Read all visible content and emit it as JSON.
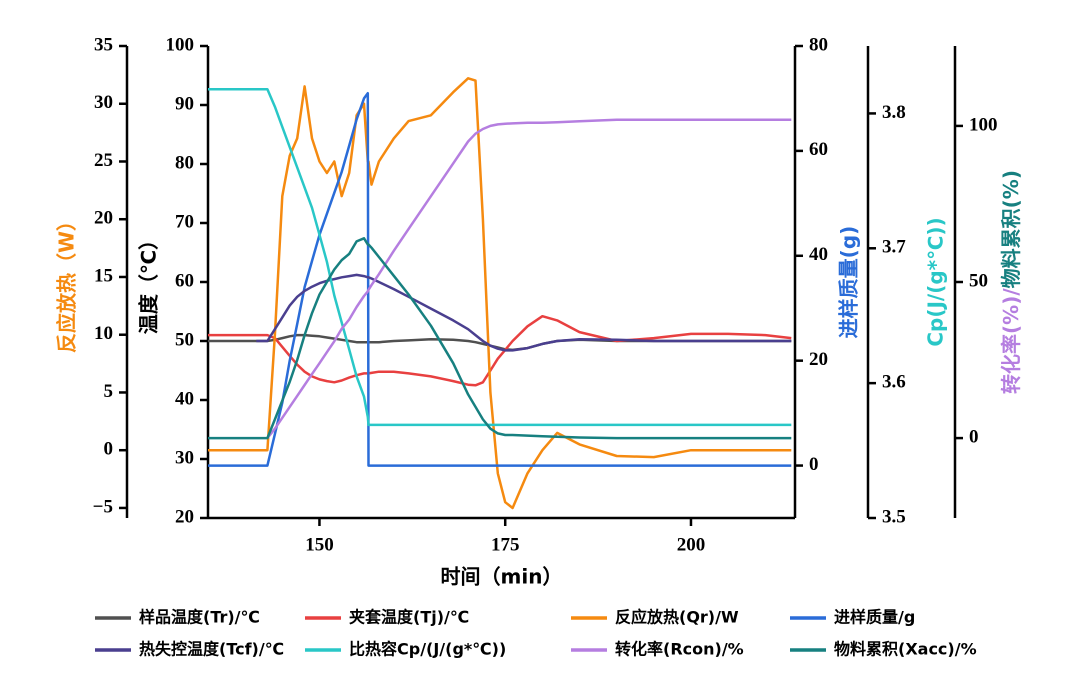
{
  "chart_data": {
    "type": "line",
    "x_label": "时间（min）",
    "xlim": [
      135,
      214
    ],
    "xticks": [
      150,
      175,
      200
    ],
    "ylim": [
      20,
      100
    ],
    "yticks": [
      20,
      30,
      40,
      50,
      60,
      70,
      80,
      90,
      100
    ],
    "y_label": "温度（℃）",
    "y2lim": [
      -5.87,
      35
    ],
    "y2ticks": [
      {
        "value": -5,
        "label": "−5"
      },
      0,
      5,
      10,
      15,
      20,
      25,
      30,
      35
    ],
    "y2_label": "反应放热（W）",
    "y3lim": [
      -10,
      80
    ],
    "y3ticks": [
      0,
      20,
      40,
      60,
      80
    ],
    "y3_label": "进样质量(g)",
    "y4lim": [
      3.5,
      3.85
    ],
    "y4ticks": [
      3.5,
      3.6,
      3.7,
      3.8
    ],
    "y4_label": "Cp(J/(g*℃))",
    "y5lim": [
      -25.6,
      125.6
    ],
    "y5ticks": [
      0,
      50,
      100
    ],
    "y5_label": [
      "转化率(%)/",
      "物料累积(%)"
    ],
    "x": [
      135,
      140,
      141.5,
      143,
      144,
      145,
      146,
      147,
      148,
      149,
      150,
      151,
      152,
      153,
      154,
      155,
      156,
      156.5,
      156.6,
      157,
      158,
      160,
      162,
      165,
      168,
      170,
      171,
      172,
      173,
      174,
      175,
      176,
      178,
      180,
      182,
      185,
      190,
      195,
      200,
      205,
      210,
      213.5
    ],
    "series": [
      {
        "name": "样品温度(Tr)/℃",
        "color": "#505050",
        "axis": "y",
        "values": [
          50,
          50,
          50,
          50,
          50.2,
          50.5,
          50.8,
          51,
          51,
          50.9,
          50.8,
          50.6,
          50.4,
          50.2,
          50,
          49.8,
          49.8,
          49.8,
          49.8,
          49.8,
          49.8,
          50,
          50.1,
          50.3,
          50.2,
          50,
          49.8,
          49.5,
          49.2,
          48.9,
          48.6,
          48.5,
          48.8,
          49.5,
          50,
          50.2,
          50,
          50,
          50,
          50,
          50,
          50
        ]
      },
      {
        "name": "夹套温度(Tj)/℃",
        "color": "#e84040",
        "axis": "y",
        "values": [
          51,
          51,
          51,
          51,
          50.5,
          49,
          47.5,
          46,
          44.8,
          44,
          43.5,
          43.2,
          43,
          43.3,
          43.8,
          44.2,
          44.5,
          44.5,
          44.5,
          44.6,
          44.8,
          44.8,
          44.5,
          44,
          43.2,
          42.6,
          42.5,
          43,
          45,
          47,
          48.5,
          50,
          52.5,
          54.2,
          53.5,
          51.5,
          50,
          50.5,
          51.2,
          51.2,
          51,
          50.5
        ]
      },
      {
        "name": "反应放热(Qr)/W",
        "color": "#f58a10",
        "axis": "y2",
        "values": [
          0,
          0,
          0,
          0,
          10,
          22,
          25.5,
          27,
          31.5,
          27,
          25,
          24,
          25,
          22,
          24,
          29,
          30,
          25,
          25,
          23,
          25,
          27,
          28.5,
          29,
          31,
          32.2,
          32,
          20,
          5,
          -2,
          -4.5,
          -5,
          -2,
          0,
          1.5,
          0.5,
          -0.5,
          -0.6,
          0,
          0,
          0,
          0
        ]
      },
      {
        "name": "进样质量/g",
        "color": "#2a6cd8",
        "axis": "y3",
        "values": [
          0,
          0,
          0,
          0,
          6,
          12,
          20,
          27,
          34,
          39,
          44,
          48,
          52,
          56,
          61,
          66,
          70,
          71,
          0,
          0,
          0,
          0,
          0,
          0,
          0,
          0,
          0,
          0,
          0,
          0,
          0,
          0,
          0,
          0,
          0,
          0,
          0,
          0,
          0,
          0,
          0,
          0
        ]
      },
      {
        "name": "热失控温度(Tcf)/℃",
        "color": "#4a3f8f",
        "axis": "y",
        "values": [
          null,
          null,
          50,
          50,
          52,
          54,
          56,
          57.5,
          58.5,
          59.2,
          59.8,
          60.2,
          60.5,
          60.8,
          61,
          61.2,
          61,
          60.8,
          60.8,
          60.6,
          60,
          58.8,
          57.5,
          55.5,
          53.5,
          52,
          51,
          50,
          49.2,
          48.7,
          48.4,
          48.4,
          48.8,
          49.5,
          50,
          50.3,
          50.2,
          50,
          50,
          50,
          50,
          50
        ]
      },
      {
        "name": "比热容Cp/(J/(g*℃))",
        "color": "#29c7c7",
        "axis": "y4",
        "values": [
          3.818,
          3.818,
          3.818,
          3.818,
          3.805,
          3.79,
          3.775,
          3.76,
          3.745,
          3.73,
          3.71,
          3.69,
          3.665,
          3.645,
          3.625,
          3.605,
          3.59,
          3.575,
          3.569,
          3.569,
          3.569,
          3.569,
          3.569,
          3.569,
          3.569,
          3.569,
          3.569,
          3.569,
          3.569,
          3.569,
          3.569,
          3.569,
          3.569,
          3.569,
          3.569,
          3.569,
          3.569,
          3.569,
          3.569,
          3.569,
          3.569,
          3.569
        ]
      },
      {
        "name": "转化率(Rcon)/%",
        "color": "#b57ee0",
        "axis": "y5",
        "values": [
          null,
          null,
          null,
          0,
          3,
          6.5,
          10,
          13.5,
          17,
          20.5,
          24,
          27.5,
          31,
          35,
          38,
          42,
          45.5,
          47,
          47.5,
          49,
          52.5,
          60,
          67,
          77.5,
          88,
          95,
          97.5,
          99,
          100,
          100.5,
          100.7,
          100.8,
          101,
          101,
          101.2,
          101.5,
          102,
          102,
          102,
          102,
          102,
          102
        ]
      },
      {
        "name": "物料累积(Xacc)/%",
        "color": "#178080",
        "axis": "y5",
        "values": [
          0,
          0,
          0,
          0,
          6,
          12,
          18,
          25,
          33,
          40,
          46,
          50,
          54,
          57,
          59,
          63,
          64,
          62,
          62,
          61,
          58,
          52,
          46,
          36,
          24,
          14,
          10,
          6,
          3,
          1.5,
          1,
          1,
          0.8,
          0.6,
          0.4,
          0.2,
          0,
          0,
          0,
          0,
          0,
          0
        ]
      }
    ]
  }
}
